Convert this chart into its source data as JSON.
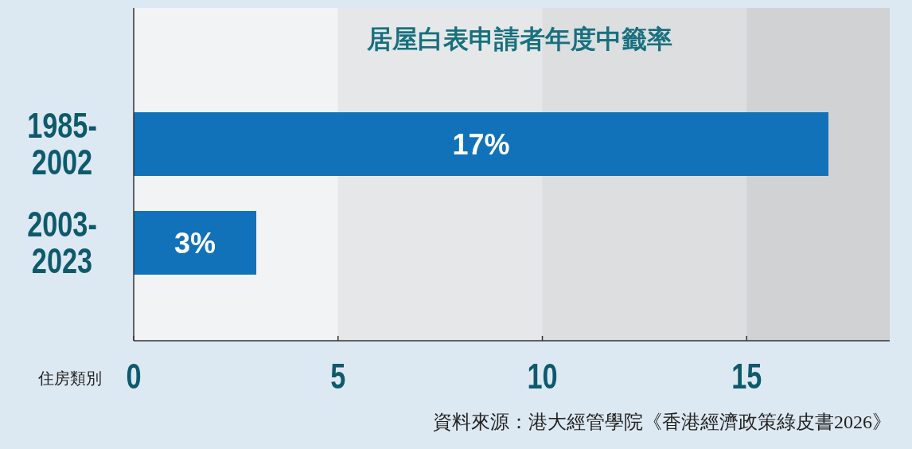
{
  "chart_data": {
    "type": "bar",
    "orientation": "horizontal",
    "title": "居屋白表申請者年度中籤率",
    "ylabel": "住房類別",
    "categories": [
      "1985-2002",
      "2003-2023"
    ],
    "values": [
      17,
      3
    ],
    "color": "#1172b9",
    "value_labels": [
      "17%",
      "3%"
    ],
    "xlim": [
      0,
      18.5
    ],
    "xticks": [
      0,
      5,
      10,
      15
    ],
    "grid": false,
    "bands": [
      {
        "axis": "x",
        "from": 0,
        "to": 5,
        "color": "#f2f3f5"
      },
      {
        "axis": "x",
        "from": 5,
        "to": 10,
        "color": "#e6e7e9"
      },
      {
        "axis": "x",
        "from": 10,
        "to": 15,
        "color": "#dcdee0"
      },
      {
        "axis": "x",
        "from": 15,
        "to": 18.5,
        "color": "#d1d2d4"
      }
    ],
    "annotations": [
      "資料來源：港大經管學院《香港經濟政策綠皮書2026》"
    ]
  }
}
